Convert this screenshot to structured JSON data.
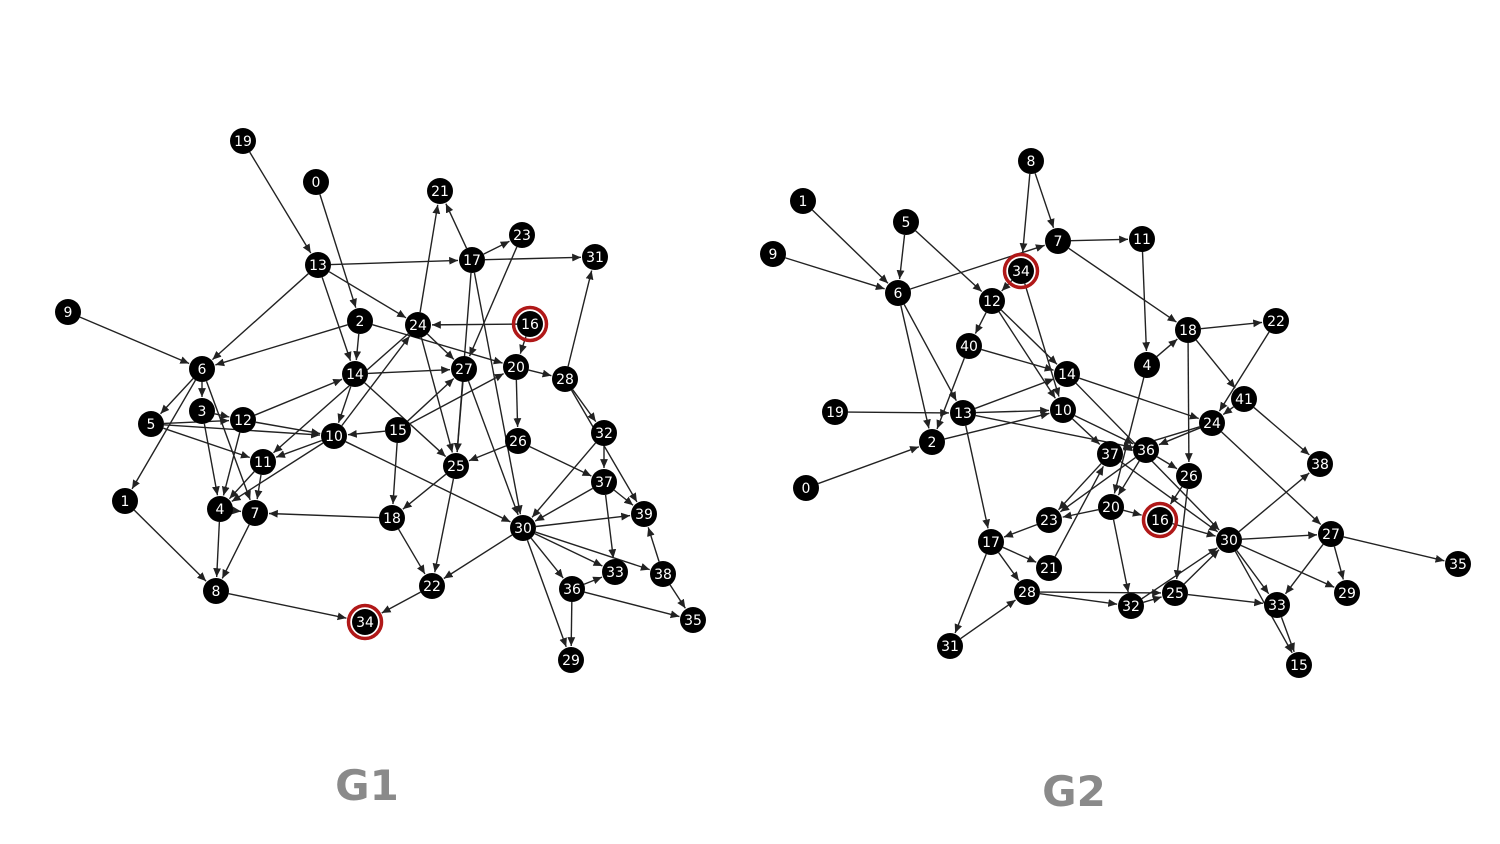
{
  "colors": {
    "node_fill": "#000000",
    "node_text": "#ffffff",
    "edge": "#222222",
    "highlight_ring": "#b01818",
    "title": "#8a8a8a",
    "background": "#ffffff"
  },
  "graphs": [
    {
      "id": "g1",
      "title": "G1",
      "highlighted_nodes": [
        "16",
        "34"
      ],
      "nodes": [
        "0",
        "1",
        "2",
        "3",
        "4",
        "5",
        "6",
        "7",
        "8",
        "9",
        "10",
        "11",
        "12",
        "13",
        "14",
        "15",
        "16",
        "17",
        "18",
        "19",
        "20",
        "21",
        "22",
        "23",
        "24",
        "25",
        "26",
        "27",
        "28",
        "29",
        "30",
        "31",
        "32",
        "33",
        "34",
        "35",
        "36",
        "37",
        "38",
        "39"
      ],
      "edges": [
        [
          "19",
          "13"
        ],
        [
          "0",
          "2"
        ],
        [
          "9",
          "6"
        ],
        [
          "13",
          "6"
        ],
        [
          "13",
          "17"
        ],
        [
          "13",
          "14"
        ],
        [
          "13",
          "24"
        ],
        [
          "2",
          "6"
        ],
        [
          "2",
          "14"
        ],
        [
          "2",
          "20"
        ],
        [
          "6",
          "5"
        ],
        [
          "6",
          "3"
        ],
        [
          "6",
          "1"
        ],
        [
          "6",
          "7"
        ],
        [
          "3",
          "12"
        ],
        [
          "3",
          "4"
        ],
        [
          "5",
          "12"
        ],
        [
          "5",
          "10"
        ],
        [
          "5",
          "11"
        ],
        [
          "12",
          "10"
        ],
        [
          "12",
          "14"
        ],
        [
          "12",
          "4"
        ],
        [
          "10",
          "11"
        ],
        [
          "10",
          "4"
        ],
        [
          "10",
          "24"
        ],
        [
          "10",
          "30"
        ],
        [
          "11",
          "4"
        ],
        [
          "11",
          "7"
        ],
        [
          "14",
          "27"
        ],
        [
          "14",
          "10"
        ],
        [
          "14",
          "25"
        ],
        [
          "15",
          "20"
        ],
        [
          "15",
          "27"
        ],
        [
          "15",
          "18"
        ],
        [
          "15",
          "10"
        ],
        [
          "24",
          "21"
        ],
        [
          "24",
          "27"
        ],
        [
          "24",
          "25"
        ],
        [
          "24",
          "11"
        ],
        [
          "16",
          "24"
        ],
        [
          "16",
          "20"
        ],
        [
          "17",
          "21"
        ],
        [
          "17",
          "23"
        ],
        [
          "17",
          "31"
        ],
        [
          "17",
          "25"
        ],
        [
          "17",
          "30"
        ],
        [
          "23",
          "27"
        ],
        [
          "27",
          "30"
        ],
        [
          "27",
          "25"
        ],
        [
          "20",
          "26"
        ],
        [
          "20",
          "28"
        ],
        [
          "26",
          "25"
        ],
        [
          "26",
          "37"
        ],
        [
          "28",
          "32"
        ],
        [
          "28",
          "39"
        ],
        [
          "28",
          "31"
        ],
        [
          "32",
          "37"
        ],
        [
          "32",
          "30"
        ],
        [
          "37",
          "39"
        ],
        [
          "37",
          "33"
        ],
        [
          "37",
          "30"
        ],
        [
          "30",
          "39"
        ],
        [
          "30",
          "33"
        ],
        [
          "30",
          "36"
        ],
        [
          "30",
          "38"
        ],
        [
          "30",
          "29"
        ],
        [
          "30",
          "22"
        ],
        [
          "36",
          "29"
        ],
        [
          "36",
          "35"
        ],
        [
          "36",
          "33"
        ],
        [
          "38",
          "39"
        ],
        [
          "38",
          "35"
        ],
        [
          "25",
          "22"
        ],
        [
          "25",
          "18"
        ],
        [
          "18",
          "7"
        ],
        [
          "18",
          "22"
        ],
        [
          "22",
          "34"
        ],
        [
          "8",
          "34"
        ],
        [
          "1",
          "8"
        ],
        [
          "4",
          "8"
        ],
        [
          "7",
          "8"
        ],
        [
          "4",
          "7"
        ]
      ]
    },
    {
      "id": "g2",
      "title": "G2",
      "highlighted_nodes": [
        "34",
        "16"
      ],
      "nodes": [
        "0",
        "1",
        "2",
        "4",
        "5",
        "6",
        "7",
        "8",
        "9",
        "10",
        "11",
        "12",
        "13",
        "14",
        "15",
        "16",
        "17",
        "18",
        "19",
        "20",
        "21",
        "22",
        "23",
        "24",
        "25",
        "26",
        "27",
        "28",
        "29",
        "30",
        "31",
        "32",
        "33",
        "34",
        "35",
        "36",
        "37",
        "38",
        "40",
        "41"
      ],
      "edges": [
        [
          "1",
          "6"
        ],
        [
          "9",
          "6"
        ],
        [
          "5",
          "6"
        ],
        [
          "5",
          "12"
        ],
        [
          "6",
          "7"
        ],
        [
          "6",
          "2"
        ],
        [
          "6",
          "13"
        ],
        [
          "8",
          "7"
        ],
        [
          "8",
          "34"
        ],
        [
          "7",
          "11"
        ],
        [
          "7",
          "18"
        ],
        [
          "34",
          "12"
        ],
        [
          "34",
          "10"
        ],
        [
          "12",
          "40"
        ],
        [
          "12",
          "10"
        ],
        [
          "12",
          "14"
        ],
        [
          "40",
          "14"
        ],
        [
          "40",
          "2"
        ],
        [
          "19",
          "13"
        ],
        [
          "13",
          "14"
        ],
        [
          "13",
          "10"
        ],
        [
          "13",
          "17"
        ],
        [
          "13",
          "36"
        ],
        [
          "0",
          "2"
        ],
        [
          "2",
          "10"
        ],
        [
          "10",
          "37"
        ],
        [
          "10",
          "36"
        ],
        [
          "14",
          "24"
        ],
        [
          "14",
          "30"
        ],
        [
          "11",
          "4"
        ],
        [
          "4",
          "18"
        ],
        [
          "4",
          "20"
        ],
        [
          "18",
          "22"
        ],
        [
          "18",
          "41"
        ],
        [
          "18",
          "26"
        ],
        [
          "22",
          "24"
        ],
        [
          "41",
          "24"
        ],
        [
          "41",
          "38"
        ],
        [
          "24",
          "37"
        ],
        [
          "24",
          "27"
        ],
        [
          "24",
          "36"
        ],
        [
          "37",
          "23"
        ],
        [
          "37",
          "30"
        ],
        [
          "36",
          "20"
        ],
        [
          "36",
          "26"
        ],
        [
          "36",
          "23"
        ],
        [
          "20",
          "16"
        ],
        [
          "20",
          "32"
        ],
        [
          "20",
          "23"
        ],
        [
          "26",
          "16"
        ],
        [
          "26",
          "25"
        ],
        [
          "23",
          "17"
        ],
        [
          "17",
          "21"
        ],
        [
          "17",
          "28"
        ],
        [
          "17",
          "31"
        ],
        [
          "31",
          "28"
        ],
        [
          "28",
          "32"
        ],
        [
          "28",
          "25"
        ],
        [
          "32",
          "25"
        ],
        [
          "32",
          "30"
        ],
        [
          "25",
          "30"
        ],
        [
          "25",
          "33"
        ],
        [
          "30",
          "27"
        ],
        [
          "30",
          "33"
        ],
        [
          "30",
          "15"
        ],
        [
          "30",
          "29"
        ],
        [
          "30",
          "38"
        ],
        [
          "27",
          "35"
        ],
        [
          "27",
          "33"
        ],
        [
          "27",
          "29"
        ],
        [
          "33",
          "15"
        ],
        [
          "16",
          "30"
        ],
        [
          "21",
          "37"
        ]
      ]
    }
  ]
}
